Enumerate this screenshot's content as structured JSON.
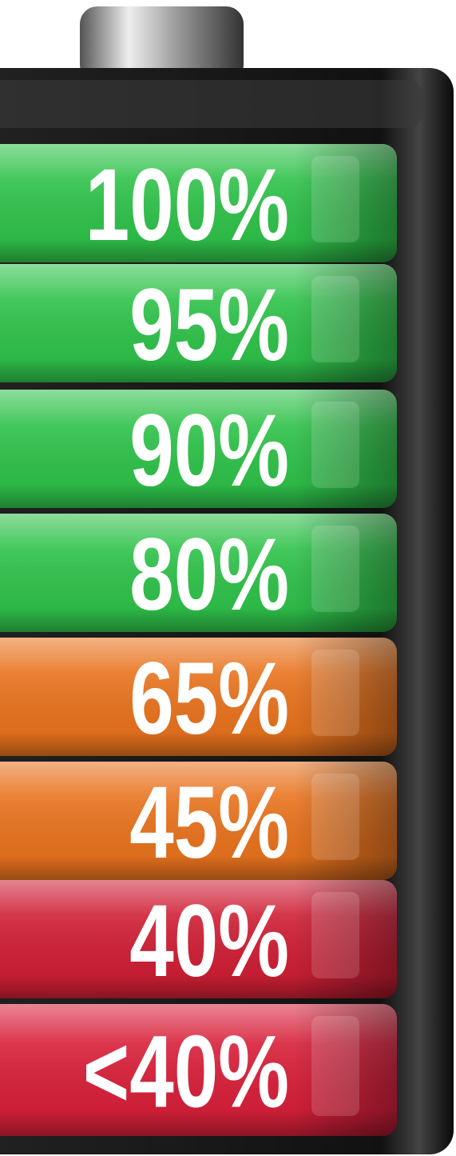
{
  "segments": [
    {
      "label": "100%",
      "color": "#2fc24a"
    },
    {
      "label": "95%",
      "color": "#2fc24a"
    },
    {
      "label": "90%",
      "color": "#2fc24a"
    },
    {
      "label": "80%",
      "color": "#2fc24a"
    },
    {
      "label": "65%",
      "color": "#e8731e"
    },
    {
      "label": "45%",
      "color": "#e8731e"
    },
    {
      "label": "40%",
      "color": "#cf1f35"
    },
    {
      "label": "<40%",
      "color": "#d8203a"
    }
  ]
}
